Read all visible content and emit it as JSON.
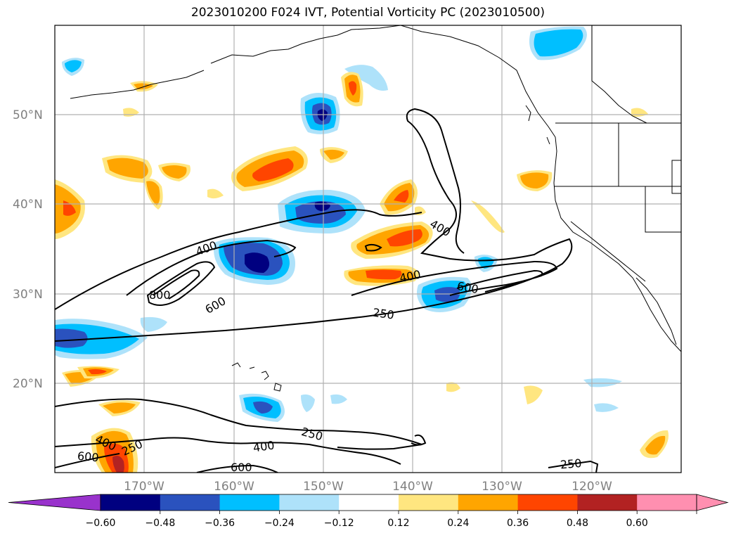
{
  "title": "2023010200 F024 IVT, Potential Vorticity PC (2023010500)",
  "map": {
    "lat_labels": [
      "50°N",
      "40°N",
      "30°N",
      "20°N"
    ],
    "lon_labels": [
      "170°W",
      "160°W",
      "150°W",
      "140°W",
      "130°W",
      "120°W"
    ],
    "contour_labels": [
      "400",
      "800",
      "600",
      "400",
      "400",
      "250",
      "600",
      "600",
      "400",
      "250",
      "400",
      "250",
      "600",
      "250"
    ],
    "colors": {
      "grid": "#b0b0b0",
      "neg_060": "#000080",
      "neg_048": "#2a52be",
      "neg_036": "#00bfff",
      "neg_024": "#87cefa",
      "pos_012": "#ffe680",
      "pos_024": "#ffa500",
      "pos_036": "#ff4500",
      "pos_048": "#b22222",
      "pos_060": "#ff8fb0",
      "below": "#9932cc"
    }
  },
  "colorbar": {
    "ticks": [
      "−0.60",
      "−0.48",
      "−0.36",
      "−0.24",
      "−0.12",
      "0.12",
      "0.24",
      "0.36",
      "0.48",
      "0.60"
    ],
    "colors": [
      "#9932cc",
      "#000080",
      "#2a52be",
      "#00bfff",
      "#aee2fa",
      "#ffffff",
      "#ffe680",
      "#ffa500",
      "#ff4500",
      "#b22222",
      "#ff8fb0",
      "#ff8fb0"
    ]
  }
}
